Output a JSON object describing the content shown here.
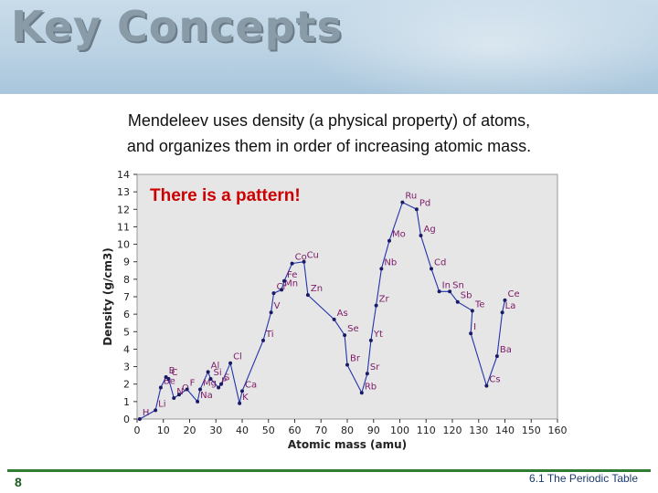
{
  "header": {
    "title": "Key Concepts"
  },
  "intro": {
    "line1": "Mendeleev uses density (a physical property) of atoms,",
    "line2": "and organizes them in order of increasing atomic mass."
  },
  "annotation": "There is a pattern!",
  "footer": {
    "slide_number": "8",
    "section": "6.1 The Periodic Table"
  },
  "chart_data": {
    "type": "line",
    "title": "",
    "xlabel": "Atomic mass (amu)",
    "ylabel": "Density (g/cm3)",
    "xlim": [
      0,
      160
    ],
    "ylim": [
      0,
      14
    ],
    "xticks": [
      0,
      10,
      20,
      30,
      40,
      50,
      60,
      70,
      80,
      90,
      100,
      110,
      120,
      130,
      140,
      150,
      160
    ],
    "yticks": [
      0,
      1,
      2,
      3,
      4,
      5,
      6,
      7,
      8,
      9,
      10,
      11,
      12,
      13,
      14
    ],
    "grid": false,
    "colors": {
      "line": "#2233aa",
      "marker": "#1a1a66",
      "label": "#7a1a66",
      "plot_bg": "#e6e6e6"
    },
    "series": [
      {
        "points": [
          {
            "label": "H",
            "x": 1,
            "y": 0.0
          },
          {
            "label": "Li",
            "x": 7,
            "y": 0.5
          },
          {
            "label": "Be",
            "x": 9,
            "y": 1.8
          },
          {
            "label": "B",
            "x": 11,
            "y": 2.4
          },
          {
            "label": "C",
            "x": 12,
            "y": 2.3
          },
          {
            "label": "N",
            "x": 14,
            "y": 1.2
          },
          {
            "label": "O",
            "x": 16,
            "y": 1.4
          },
          {
            "label": "F",
            "x": 19,
            "y": 1.7
          },
          {
            "label": "Na",
            "x": 23,
            "y": 1.0
          },
          {
            "label": "Mg",
            "x": 24,
            "y": 1.7
          },
          {
            "label": "Al",
            "x": 27,
            "y": 2.7
          },
          {
            "label": "Si",
            "x": 28,
            "y": 2.3
          },
          {
            "label": "P",
            "x": 31,
            "y": 1.8
          },
          {
            "label": "S",
            "x": 32,
            "y": 2.0
          },
          {
            "label": "Cl",
            "x": 35.5,
            "y": 3.2
          },
          {
            "label": "K",
            "x": 39,
            "y": 0.9
          },
          {
            "label": "Ca",
            "x": 40,
            "y": 1.6
          },
          {
            "label": "Ti",
            "x": 48,
            "y": 4.5
          },
          {
            "label": "V",
            "x": 51,
            "y": 6.1
          },
          {
            "label": "Cr",
            "x": 52,
            "y": 7.2
          },
          {
            "label": "Mn",
            "x": 55,
            "y": 7.4
          },
          {
            "label": "Fe",
            "x": 56,
            "y": 7.9
          },
          {
            "label": "Co",
            "x": 59,
            "y": 8.9
          },
          {
            "label": "Cu",
            "x": 63.5,
            "y": 9.0
          },
          {
            "label": "Zn",
            "x": 65,
            "y": 7.1
          },
          {
            "label": "As",
            "x": 75,
            "y": 5.7
          },
          {
            "label": "Se",
            "x": 79,
            "y": 4.8
          },
          {
            "label": "Br",
            "x": 80,
            "y": 3.1
          },
          {
            "label": "Rb",
            "x": 85.5,
            "y": 1.5
          },
          {
            "label": "Sr",
            "x": 87.6,
            "y": 2.6
          },
          {
            "label": "Yt",
            "x": 89,
            "y": 4.5
          },
          {
            "label": "Zr",
            "x": 91,
            "y": 6.5
          },
          {
            "label": "Nb",
            "x": 93,
            "y": 8.6
          },
          {
            "label": "Mo",
            "x": 96,
            "y": 10.2
          },
          {
            "label": "Ru",
            "x": 101,
            "y": 12.4
          },
          {
            "label": "Pd",
            "x": 106.4,
            "y": 12.0
          },
          {
            "label": "Ag",
            "x": 108,
            "y": 10.5
          },
          {
            "label": "Cd",
            "x": 112,
            "y": 8.6
          },
          {
            "label": "In",
            "x": 115,
            "y": 7.3
          },
          {
            "label": "Sn",
            "x": 119,
            "y": 7.3
          },
          {
            "label": "Sb",
            "x": 122,
            "y": 6.7
          },
          {
            "label": "Te",
            "x": 127.6,
            "y": 6.2
          },
          {
            "label": "I",
            "x": 127,
            "y": 4.9
          },
          {
            "label": "Cs",
            "x": 133,
            "y": 1.9
          },
          {
            "label": "Ba",
            "x": 137,
            "y": 3.6
          },
          {
            "label": "La",
            "x": 139,
            "y": 6.1
          },
          {
            "label": "Ce",
            "x": 140,
            "y": 6.8
          }
        ]
      }
    ]
  }
}
